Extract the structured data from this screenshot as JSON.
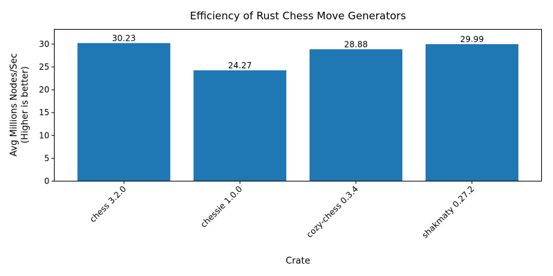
{
  "chart_data": {
    "type": "bar",
    "title": "Efficiency of Rust Chess Move Generators",
    "xlabel": "Crate",
    "ylabel_lines": [
      "Avg Millions Nodes/Sec",
      "(Higher is better)"
    ],
    "categories": [
      "chess 3.2.0",
      "chessie 1.0.0",
      "cozy-chess 0.3.4",
      "shakmaty 0.27.2"
    ],
    "values": [
      30.23,
      24.27,
      28.88,
      29.99
    ],
    "data_labels": [
      "30.23",
      "24.27",
      "28.88",
      "29.99"
    ],
    "ylim": [
      0,
      33.24
    ],
    "yticks": [
      0,
      5,
      10,
      15,
      20,
      25,
      30
    ],
    "ytick_labels": [
      "0",
      "5",
      "10",
      "15",
      "20",
      "25",
      "30"
    ],
    "bar_color": "#1f77b4",
    "grid": false,
    "legend": "none"
  }
}
